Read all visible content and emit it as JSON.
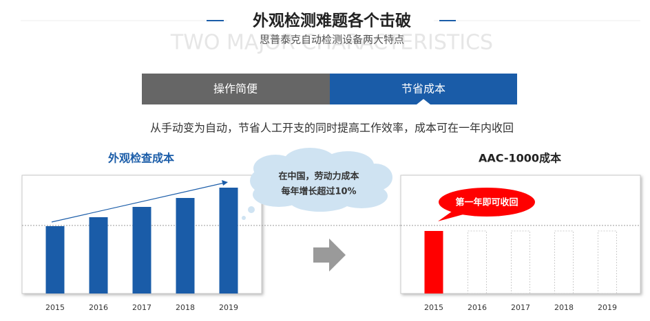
{
  "header": {
    "title": "外观检测难题各个击破",
    "background_text": "TWO MAJOR CHARACTERISTICS",
    "subtitle": "思普泰克自动检测设备两大特点"
  },
  "tabs": [
    "操作简便",
    "节省成本"
  ],
  "description": "从手动变为自动，节省人工开支的同时提高工作效率，成本可在一年内收回",
  "chart_data": [
    {
      "type": "bar",
      "title": "外观检查成本",
      "categories": [
        "2015",
        "2016",
        "2017",
        "2018",
        "2019"
      ],
      "values": [
        98,
        111,
        126,
        139,
        154
      ],
      "color": "#1a5ca8",
      "ylim": [
        0,
        172
      ],
      "reference_line": 99,
      "annotation": [
        "在中国，劳动力成本",
        "每年增长超过10%"
      ]
    },
    {
      "type": "bar",
      "title": "AAC-1000成本",
      "categories": [
        "2015",
        "2016",
        "2017",
        "2018",
        "2019"
      ],
      "values": [
        91,
        null,
        null,
        null,
        null
      ],
      "color": "#ff0000",
      "outline_values": [
        null,
        91,
        91,
        91,
        91
      ],
      "outline_color": "#cccccc",
      "ylim": [
        0,
        172
      ],
      "reference_line": 99,
      "annotation": [
        "第一年即可收回"
      ]
    }
  ]
}
